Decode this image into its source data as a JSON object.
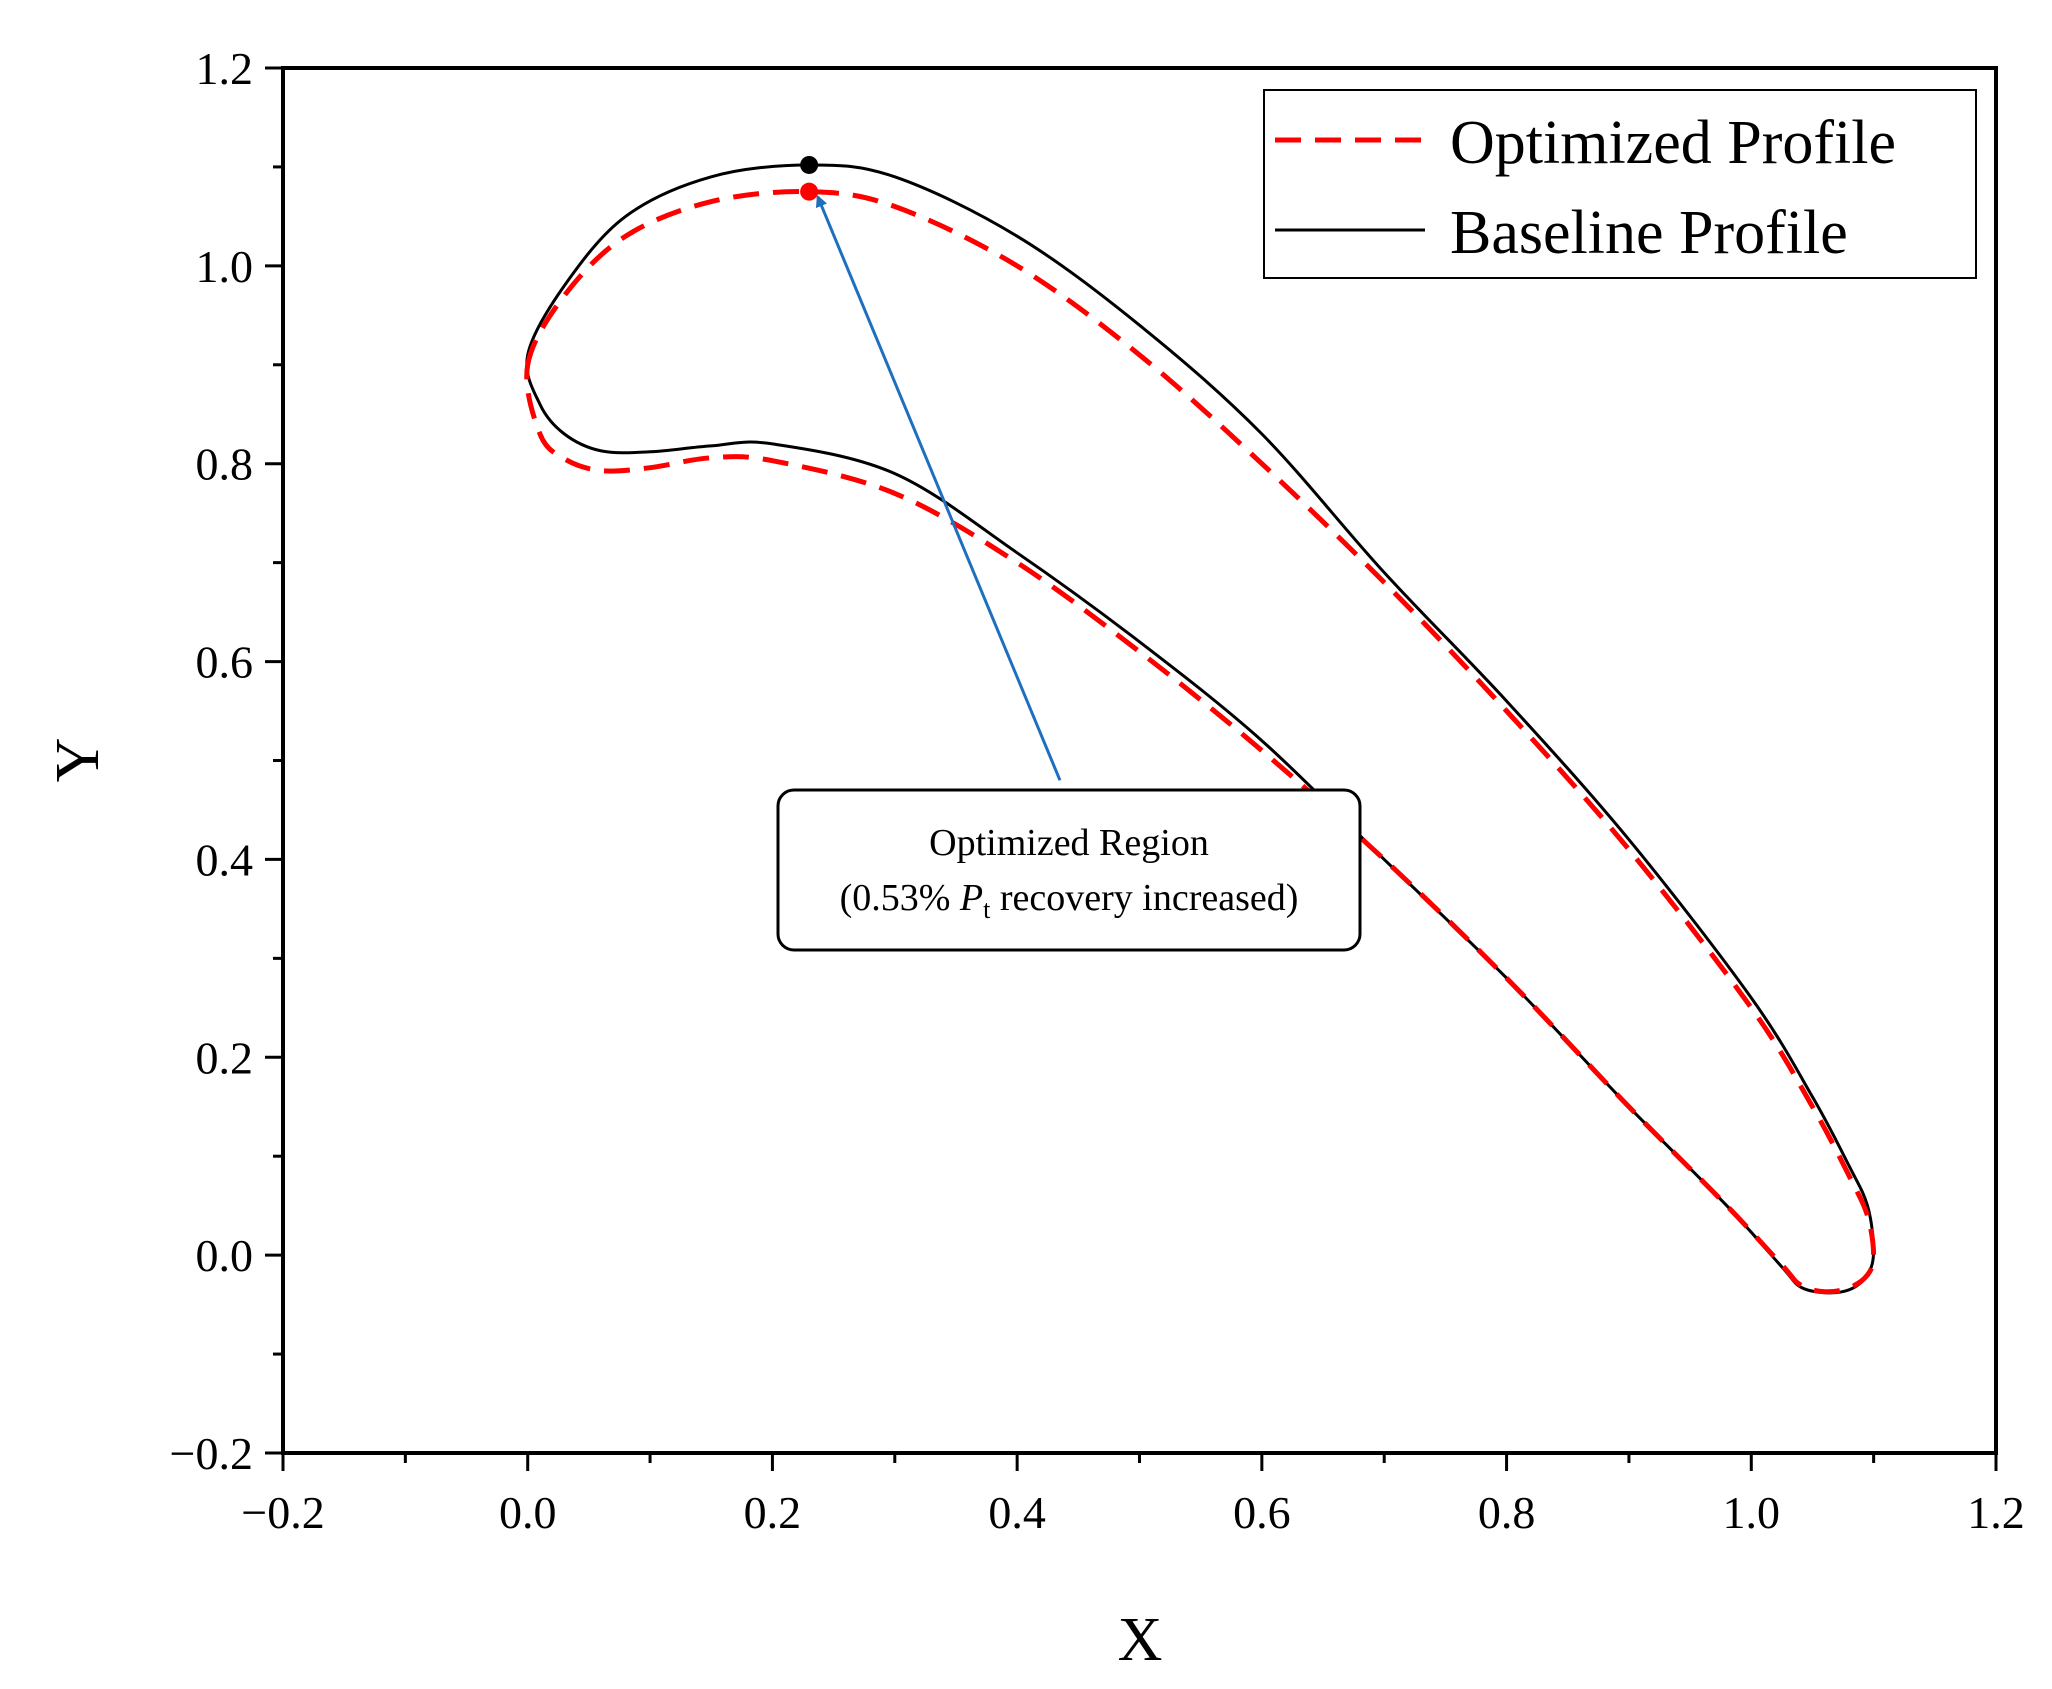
{
  "chart_data": {
    "type": "line",
    "title": "",
    "xlabel": "X",
    "ylabel": "Y",
    "xlim": [
      -0.2,
      1.2
    ],
    "ylim": [
      -0.2,
      1.2
    ],
    "xticks": [
      -0.2,
      0.0,
      0.2,
      0.4,
      0.6,
      0.8,
      1.0,
      1.2
    ],
    "xtick_labels": [
      "−0.2",
      "0.0",
      "0.2",
      "0.4",
      "0.6",
      "0.8",
      "1.0",
      "1.2"
    ],
    "yticks": [
      -0.2,
      0.0,
      0.2,
      0.4,
      0.6,
      0.8,
      1.0,
      1.2
    ],
    "ytick_labels": [
      "−0.2",
      "0.0",
      "0.2",
      "0.4",
      "0.6",
      "0.8",
      "1.0",
      "1.2"
    ],
    "grid": false,
    "legend_position": "top-right",
    "series": [
      {
        "name": "Optimized Profile",
        "style": "dashed",
        "color": "#ff0000",
        "x": [
          0.0,
          0.03,
          0.08,
          0.15,
          0.23,
          0.3,
          0.4,
          0.5,
          0.6,
          0.7,
          0.8,
          0.9,
          1.0,
          1.05,
          1.08,
          1.095,
          1.1,
          1.095,
          1.08,
          1.06,
          1.04,
          1.025,
          0.98,
          0.9,
          0.8,
          0.7,
          0.6,
          0.5,
          0.4,
          0.3,
          0.2,
          0.15,
          0.1,
          0.06,
          0.03,
          0.01,
          0.0
        ],
        "y": [
          0.9,
          0.97,
          1.03,
          1.065,
          1.075,
          1.06,
          1.0,
          0.91,
          0.8,
          0.68,
          0.55,
          0.41,
          0.25,
          0.15,
          0.08,
          0.04,
          0.0,
          -0.02,
          -0.033,
          -0.037,
          -0.03,
          -0.01,
          0.05,
          0.15,
          0.28,
          0.4,
          0.51,
          0.61,
          0.7,
          0.77,
          0.803,
          0.806,
          0.796,
          0.793,
          0.805,
          0.83,
          0.9
        ]
      },
      {
        "name": "Baseline Profile",
        "style": "solid",
        "color": "#000000",
        "x": [
          0.0,
          0.03,
          0.08,
          0.15,
          0.23,
          0.3,
          0.4,
          0.5,
          0.6,
          0.7,
          0.8,
          0.9,
          1.0,
          1.05,
          1.08,
          1.095,
          1.1,
          1.095,
          1.08,
          1.06,
          1.04,
          1.025,
          0.98,
          0.9,
          0.8,
          0.7,
          0.6,
          0.5,
          0.4,
          0.3,
          0.2,
          0.15,
          0.1,
          0.06,
          0.03,
          0.01,
          0.0
        ],
        "y": [
          0.91,
          0.98,
          1.05,
          1.09,
          1.102,
          1.09,
          1.03,
          0.94,
          0.83,
          0.69,
          0.56,
          0.42,
          0.26,
          0.16,
          0.09,
          0.05,
          0.005,
          -0.02,
          -0.035,
          -0.038,
          -0.032,
          -0.012,
          0.05,
          0.15,
          0.28,
          0.4,
          0.52,
          0.62,
          0.71,
          0.79,
          0.82,
          0.818,
          0.812,
          0.813,
          0.83,
          0.86,
          0.91
        ]
      }
    ],
    "markers": [
      {
        "name": "baseline-peak",
        "x": 0.23,
        "y": 1.102,
        "color": "#000000"
      },
      {
        "name": "optimized-peak",
        "x": 0.23,
        "y": 1.075,
        "color": "#ff0000"
      }
    ],
    "annotation": {
      "line1": "Optimized Region",
      "line2_prefix": "(0.53% ",
      "line2_var": "P",
      "line2_sub": "t",
      "line2_suffix": " recovery increased)",
      "arrow_color": "#1f6fbf",
      "arrow_from": [
        0.435,
        0.48
      ],
      "arrow_to": [
        0.237,
        1.07
      ]
    }
  }
}
